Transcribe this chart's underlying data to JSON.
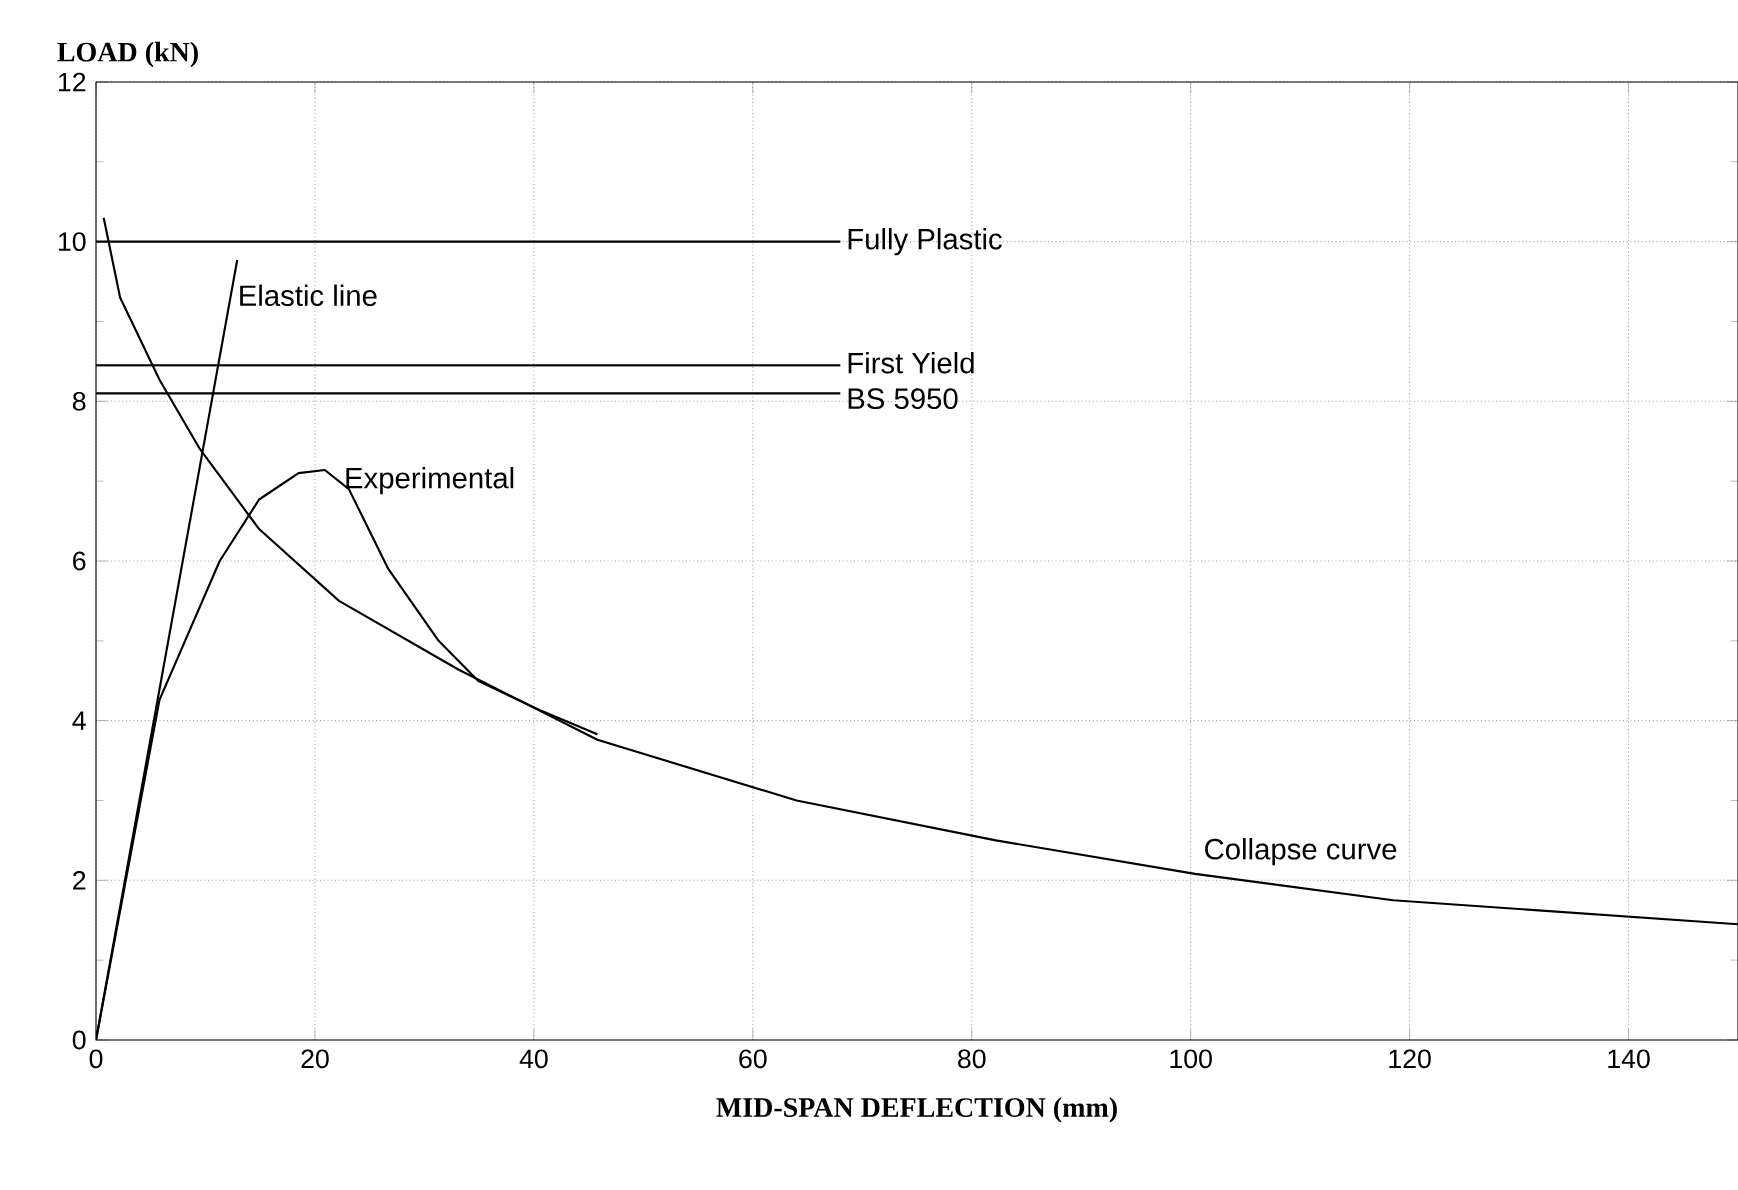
{
  "chart_data": {
    "type": "line",
    "xlabel": "MID-SPAN DEFLECTION (mm)",
    "ylabel": "LOAD (kN)",
    "xlim": [
      0,
      150
    ],
    "ylim": [
      0,
      12
    ],
    "xticks": [
      0,
      20,
      40,
      60,
      80,
      100,
      120,
      140
    ],
    "yticks": [
      0,
      2,
      4,
      6,
      8,
      10,
      12
    ],
    "grid": true,
    "marker": "none",
    "line_style": "solid",
    "series": [
      {
        "name": "Fully Plastic",
        "color": "#000000",
        "x": [
          0,
          68
        ],
        "values": [
          10.0,
          10.0
        ]
      },
      {
        "name": "First Yield",
        "color": "#000000",
        "x": [
          0,
          68
        ],
        "values": [
          8.45,
          8.45
        ]
      },
      {
        "name": "BS 5950",
        "color": "#000000",
        "x": [
          0,
          68
        ],
        "values": [
          8.1,
          8.1
        ]
      },
      {
        "name": "Elastic line",
        "color": "#000000",
        "x": [
          0,
          12.9
        ],
        "values": [
          0,
          9.77
        ]
      },
      {
        "name": "Experimental",
        "color": "#000000",
        "x": [
          0,
          5.8,
          11.3,
          14.9,
          18.5,
          20.9,
          23.1,
          26.7,
          31.3,
          34.9,
          40.4,
          45.8
        ],
        "values": [
          0,
          4.26,
          6.0,
          6.77,
          7.1,
          7.14,
          6.9,
          5.9,
          5.0,
          4.5,
          4.14,
          3.83
        ]
      },
      {
        "name": "Collapse curve",
        "color": "#000000",
        "x": [
          0.7,
          2.2,
          5.8,
          9.5,
          14.9,
          22.2,
          33.1,
          45.8,
          64,
          82.2,
          100.4,
          118.5,
          150
        ],
        "values": [
          10.3,
          9.3,
          8.27,
          7.4,
          6.4,
          5.5,
          4.64,
          3.76,
          3.0,
          2.5,
          2.08,
          1.75,
          1.45
        ]
      }
    ]
  }
}
